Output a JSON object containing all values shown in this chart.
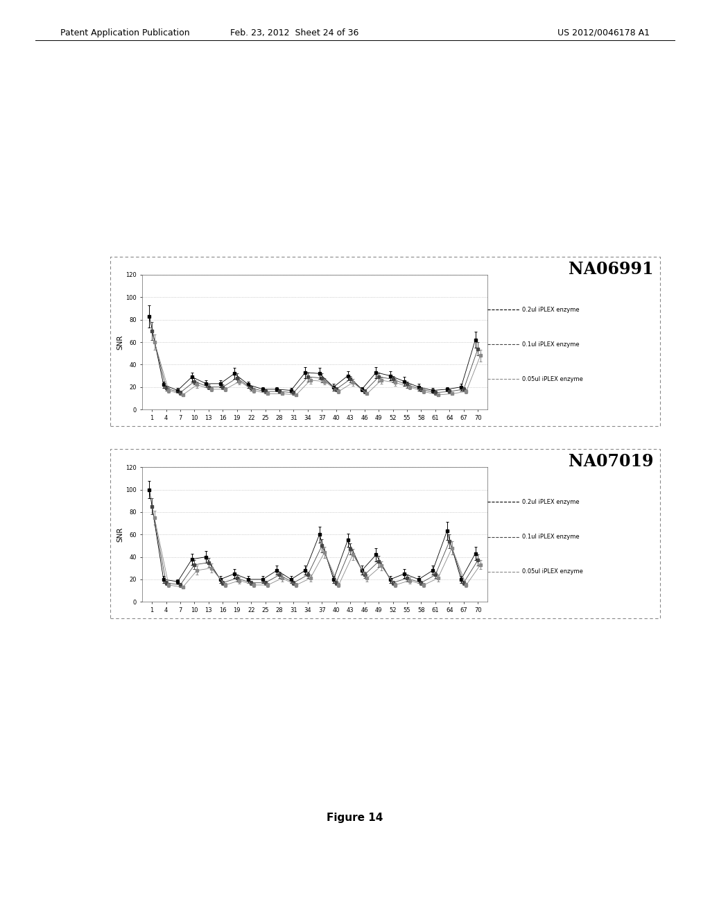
{
  "header_left": "Patent Application Publication",
  "header_date": "Feb. 23, 2012  Sheet 24 of 36",
  "header_right": "US 2012/0046178 A1",
  "figure_label": "Figure 14",
  "chart1_title": "NA06991",
  "chart2_title": "NA07019",
  "ylabel": "SNR",
  "xtick_labels": [
    "1",
    "4",
    "7",
    "10",
    "13",
    "16",
    "19",
    "22",
    "25",
    "28",
    "31",
    "34",
    "37",
    "40",
    "43",
    "46",
    "49",
    "52",
    "55",
    "58",
    "61",
    "64",
    "67",
    "70"
  ],
  "ytick_vals": [
    0,
    20,
    40,
    60,
    80,
    100,
    120
  ],
  "ylim": [
    0,
    120
  ],
  "legend_labels": [
    "0.2ul iPLEX enzyme",
    "0.1ul iPLEX enzyme",
    "0.05ul iPLEX enzyme"
  ],
  "s1_c1": [
    83,
    22,
    17,
    29,
    23,
    23,
    32,
    22,
    18,
    18,
    17,
    33,
    32,
    20,
    30,
    18,
    33,
    30,
    25,
    20,
    17,
    18,
    20,
    62
  ],
  "e1_c1": [
    10,
    3,
    2,
    4,
    3,
    3,
    5,
    3,
    2,
    2,
    2,
    5,
    5,
    3,
    4,
    2,
    5,
    4,
    4,
    3,
    2,
    2,
    3,
    7
  ],
  "s2_c1": [
    70,
    19,
    15,
    25,
    20,
    20,
    28,
    19,
    16,
    16,
    15,
    29,
    28,
    18,
    27,
    16,
    29,
    27,
    22,
    18,
    15,
    16,
    18,
    54
  ],
  "e2_c1": [
    8,
    2,
    2,
    3,
    2,
    2,
    4,
    2,
    2,
    2,
    2,
    4,
    4,
    2,
    3,
    2,
    4,
    3,
    3,
    2,
    2,
    2,
    2,
    6
  ],
  "s3_c1": [
    60,
    17,
    13,
    22,
    18,
    18,
    25,
    17,
    14,
    14,
    13,
    26,
    25,
    16,
    24,
    14,
    26,
    24,
    20,
    16,
    13,
    14,
    16,
    48
  ],
  "e3_c1": [
    7,
    2,
    1,
    3,
    2,
    2,
    3,
    2,
    1,
    1,
    1,
    3,
    3,
    2,
    3,
    1,
    3,
    3,
    2,
    2,
    1,
    1,
    2,
    5
  ],
  "s1_c2": [
    100,
    20,
    18,
    38,
    40,
    20,
    25,
    20,
    20,
    28,
    20,
    28,
    60,
    20,
    55,
    28,
    42,
    20,
    25,
    20,
    28,
    63,
    20,
    43
  ],
  "e1_c2": [
    8,
    3,
    2,
    5,
    5,
    3,
    4,
    3,
    3,
    4,
    3,
    4,
    7,
    3,
    6,
    4,
    6,
    3,
    4,
    3,
    4,
    8,
    3,
    6
  ],
  "s2_c2": [
    85,
    17,
    15,
    33,
    35,
    17,
    21,
    17,
    17,
    24,
    17,
    24,
    50,
    17,
    47,
    24,
    36,
    17,
    21,
    17,
    24,
    54,
    17,
    37
  ],
  "e2_c2": [
    7,
    2,
    2,
    4,
    4,
    2,
    3,
    2,
    2,
    3,
    2,
    3,
    6,
    2,
    5,
    3,
    5,
    2,
    3,
    2,
    3,
    6,
    2,
    5
  ],
  "s3_c2": [
    75,
    15,
    13,
    28,
    30,
    15,
    19,
    15,
    15,
    21,
    15,
    21,
    44,
    15,
    42,
    21,
    32,
    15,
    19,
    15,
    21,
    48,
    15,
    33
  ],
  "e3_c2": [
    6,
    2,
    1,
    4,
    4,
    2,
    3,
    2,
    2,
    3,
    2,
    3,
    5,
    2,
    5,
    3,
    4,
    2,
    3,
    2,
    3,
    6,
    2,
    4
  ],
  "lc1": "#000000",
  "lc2": "#444444",
  "lc3": "#888888",
  "bg_color": "#ffffff"
}
